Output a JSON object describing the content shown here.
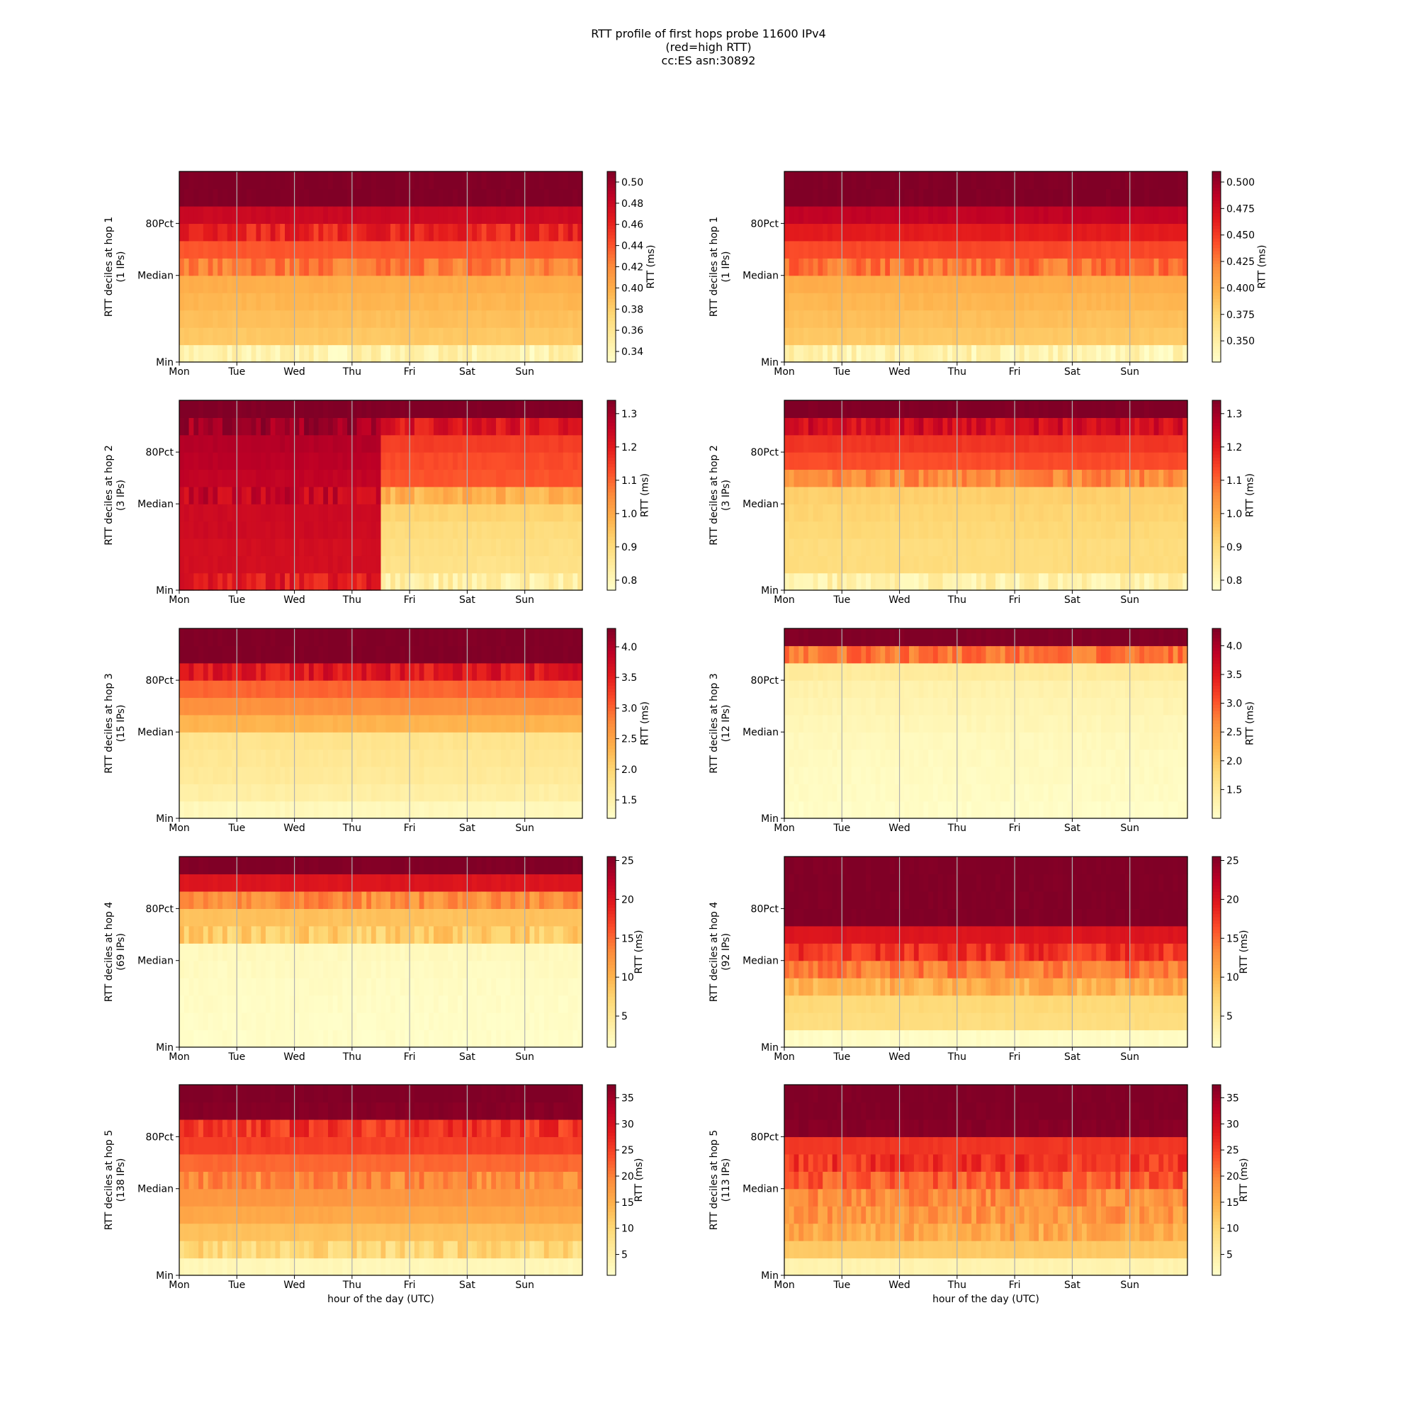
{
  "figure": {
    "title_lines": [
      "RTT profile of first hops probe 11600 IPv4",
      "(red=high RTT)",
      "cc:ES asn:30892"
    ],
    "colormap": [
      "#ffffcc",
      "#ffeda0",
      "#fed976",
      "#feb24c",
      "#fd8d3c",
      "#fc4e2a",
      "#e31a1c",
      "#bd0026",
      "#800026"
    ]
  },
  "chart_data": [
    {
      "type": "heatmap",
      "hop": 1,
      "side": "left",
      "ylabel": [
        "RTT deciles at hop 1",
        "(1 IPs)"
      ],
      "ytick_labels": [
        "Min",
        "Median",
        "80Pct"
      ],
      "xtick_labels": [
        "Mon",
        "Tue",
        "Wed",
        "Thu",
        "Fri",
        "Sat",
        "Sun"
      ],
      "xlabel": "",
      "cbar_label": "RTT (ms)",
      "cbar_range": [
        0.33,
        0.51
      ],
      "cbar_ticks": [
        "0.34",
        "0.36",
        "0.38",
        "0.40",
        "0.42",
        "0.44",
        "0.46",
        "0.48",
        "0.50"
      ],
      "deciles": [
        0.345,
        0.385,
        0.39,
        0.395,
        0.4,
        0.425,
        0.44,
        0.46,
        0.48,
        0.51,
        0.51
      ],
      "step_at": null,
      "deciles_after": null,
      "spike_rows": [
        0,
        5,
        7
      ]
    },
    {
      "type": "heatmap",
      "hop": 1,
      "side": "right",
      "ylabel": [
        "RTT deciles at hop 1",
        "(1 IPs)"
      ],
      "ytick_labels": [
        "Min",
        "Median",
        "80Pct"
      ],
      "xtick_labels": [
        "Mon",
        "Tue",
        "Wed",
        "Thu",
        "Fri",
        "Sat",
        "Sun"
      ],
      "xlabel": "",
      "cbar_label": "RTT (ms)",
      "cbar_range": [
        0.33,
        0.51
      ],
      "cbar_ticks": [
        "0.350",
        "0.375",
        "0.400",
        "0.425",
        "0.450",
        "0.475",
        "0.500"
      ],
      "deciles": [
        0.345,
        0.385,
        0.39,
        0.395,
        0.4,
        0.43,
        0.445,
        0.465,
        0.485,
        0.51,
        0.51
      ],
      "step_at": null,
      "deciles_after": null,
      "spike_rows": [
        0,
        5
      ]
    },
    {
      "type": "heatmap",
      "hop": 2,
      "side": "left",
      "ylabel": [
        "RTT deciles at hop 2",
        "(3 IPs)"
      ],
      "ytick_labels": [
        "Min",
        "Median",
        "80Pct"
      ],
      "xtick_labels": [
        "Mon",
        "Tue",
        "Wed",
        "Thu",
        "Fri",
        "Sat",
        "Sun"
      ],
      "xlabel": "",
      "cbar_label": "RTT (ms)",
      "cbar_range": [
        0.77,
        1.34
      ],
      "cbar_ticks": [
        "0.8",
        "0.9",
        "1.0",
        "1.1",
        "1.2",
        "1.3"
      ],
      "deciles": [
        1.2,
        1.23,
        1.23,
        1.24,
        1.24,
        1.25,
        1.26,
        1.27,
        1.28,
        1.3,
        1.34
      ],
      "step_at": 0.5,
      "deciles_after": [
        0.83,
        0.88,
        0.89,
        0.9,
        0.92,
        0.98,
        1.12,
        1.13,
        1.15,
        1.21,
        1.34
      ],
      "spike_rows": [
        0,
        5,
        9
      ]
    },
    {
      "type": "heatmap",
      "hop": 2,
      "side": "right",
      "ylabel": [
        "RTT deciles at hop 2",
        "(3 IPs)"
      ],
      "ytick_labels": [
        "Min",
        "Median",
        "80Pct"
      ],
      "xtick_labels": [
        "Mon",
        "Tue",
        "Wed",
        "Thu",
        "Fri",
        "Sat",
        "Sun"
      ],
      "xlabel": "",
      "cbar_label": "RTT (ms)",
      "cbar_range": [
        0.77,
        1.34
      ],
      "cbar_ticks": [
        "0.8",
        "0.9",
        "1.0",
        "1.1",
        "1.2",
        "1.3"
      ],
      "deciles": [
        0.83,
        0.9,
        0.9,
        0.91,
        0.92,
        0.93,
        1.05,
        1.13,
        1.16,
        1.23,
        1.34
      ],
      "step_at": null,
      "deciles_after": null,
      "spike_rows": [
        0,
        6,
        9
      ]
    },
    {
      "type": "heatmap",
      "hop": 3,
      "side": "left",
      "ylabel": [
        "RTT deciles at hop 3",
        "(15 IPs)"
      ],
      "ytick_labels": [
        "Min",
        "Median",
        "80Pct"
      ],
      "xtick_labels": [
        "Mon",
        "Tue",
        "Wed",
        "Thu",
        "Fri",
        "Sat",
        "Sun"
      ],
      "xlabel": "",
      "cbar_label": "RTT (ms)",
      "cbar_range": [
        1.2,
        4.3
      ],
      "cbar_ticks": [
        "1.5",
        "2.0",
        "2.5",
        "3.0",
        "3.5",
        "4.0"
      ],
      "deciles": [
        1.35,
        1.55,
        1.65,
        1.7,
        1.75,
        2.35,
        2.7,
        3.0,
        3.6,
        4.3,
        4.3
      ],
      "step_at": null,
      "deciles_after": null,
      "spike_rows": [
        8
      ]
    },
    {
      "type": "heatmap",
      "hop": 3,
      "side": "right",
      "ylabel": [
        "RTT deciles at hop 3",
        "(12 IPs)"
      ],
      "ytick_labels": [
        "Min",
        "Median",
        "80Pct"
      ],
      "xtick_labels": [
        "Mon",
        "Tue",
        "Wed",
        "Thu",
        "Fri",
        "Sat",
        "Sun"
      ],
      "xlabel": "",
      "cbar_label": "RTT (ms)",
      "cbar_range": [
        1.0,
        4.3
      ],
      "cbar_ticks": [
        "1.5",
        "2.0",
        "2.5",
        "3.0",
        "3.5",
        "4.0"
      ],
      "deciles": [
        1.05,
        1.08,
        1.1,
        1.12,
        1.15,
        1.2,
        1.25,
        1.3,
        1.45,
        2.8,
        4.3
      ],
      "step_at": null,
      "deciles_after": null,
      "spike_rows": [
        9
      ]
    },
    {
      "type": "heatmap",
      "hop": 4,
      "side": "left",
      "ylabel": [
        "RTT deciles at hop 4",
        "(69 IPs)"
      ],
      "ytick_labels": [
        "Min",
        "Median",
        "80Pct"
      ],
      "xtick_labels": [
        "Mon",
        "Tue",
        "Wed",
        "Thu",
        "Fri",
        "Sat",
        "Sun"
      ],
      "xlabel": "",
      "cbar_label": "RTT (ms)",
      "cbar_range": [
        1.0,
        25.5
      ],
      "cbar_ticks": [
        "5",
        "10",
        "15",
        "20",
        "25"
      ],
      "deciles": [
        1.3,
        1.4,
        1.5,
        1.6,
        1.8,
        2.0,
        8.0,
        9.0,
        13.0,
        20.0,
        25.5
      ],
      "step_at": null,
      "deciles_after": null,
      "spike_rows": [
        6,
        8
      ]
    },
    {
      "type": "heatmap",
      "hop": 4,
      "side": "right",
      "ylabel": [
        "RTT deciles at hop 4",
        "(92 IPs)"
      ],
      "ytick_labels": [
        "Min",
        "Median",
        "80Pct"
      ],
      "xtick_labels": [
        "Mon",
        "Tue",
        "Wed",
        "Thu",
        "Fri",
        "Sat",
        "Sun"
      ],
      "xlabel": "",
      "cbar_label": "RTT (ms)",
      "cbar_range": [
        1.0,
        25.5
      ],
      "cbar_ticks": [
        "5",
        "10",
        "15",
        "20",
        "25"
      ],
      "deciles": [
        1.5,
        6.5,
        7.0,
        10.5,
        14.0,
        18.0,
        20.0,
        25.5,
        25.5,
        25.5,
        25.5
      ],
      "step_at": null,
      "deciles_after": null,
      "spike_rows": [
        3,
        4,
        5
      ]
    },
    {
      "type": "heatmap",
      "hop": 5,
      "side": "left",
      "ylabel": [
        "RTT deciles at hop 5",
        "(138 IPs)"
      ],
      "ytick_labels": [
        "Min",
        "Median",
        "80Pct"
      ],
      "xtick_labels": [
        "Mon",
        "Tue",
        "Wed",
        "Thu",
        "Fri",
        "Sat",
        "Sun"
      ],
      "xlabel": "hour of the day (UTC)",
      "cbar_label": "RTT (ms)",
      "cbar_range": [
        1.0,
        37.5
      ],
      "cbar_ticks": [
        "5",
        "10",
        "15",
        "20",
        "25",
        "30",
        "35"
      ],
      "deciles": [
        3.0,
        10.0,
        13.0,
        16.0,
        18.0,
        19.0,
        22.0,
        25.0,
        26.0,
        37.0,
        37.5
      ],
      "step_at": null,
      "deciles_after": null,
      "spike_rows": [
        1,
        5,
        8
      ]
    },
    {
      "type": "heatmap",
      "hop": 5,
      "side": "right",
      "ylabel": [
        "RTT deciles at hop 5",
        "(113 IPs)"
      ],
      "ytick_labels": [
        "Min",
        "Median",
        "80Pct"
      ],
      "xtick_labels": [
        "Mon",
        "Tue",
        "Wed",
        "Thu",
        "Fri",
        "Sat",
        "Sun"
      ],
      "xlabel": "hour of the day (UTC)",
      "cbar_label": "RTT (ms)",
      "cbar_range": [
        1.0,
        37.5
      ],
      "cbar_ticks": [
        "5",
        "10",
        "15",
        "20",
        "25",
        "30",
        "35"
      ],
      "deciles": [
        4.0,
        12.0,
        16.0,
        18.0,
        19.0,
        23.0,
        26.0,
        26.0,
        37.0,
        37.5,
        37.5
      ],
      "step_at": null,
      "deciles_after": null,
      "spike_rows": [
        2,
        3,
        4,
        5,
        6
      ]
    }
  ]
}
